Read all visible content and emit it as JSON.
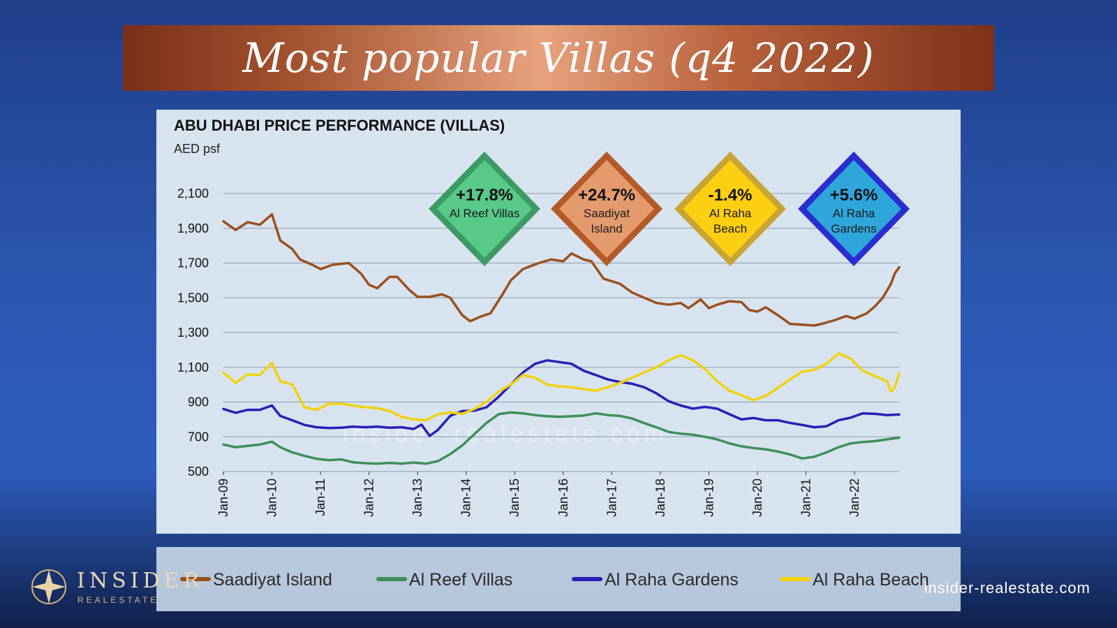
{
  "banner": {
    "title": "Most popular Villas (q4 2022)"
  },
  "brand": {
    "name": "INSIDER",
    "sub": "REALESTATE",
    "url": "insider-realestate.com"
  },
  "watermark": "insider-realestate.com",
  "colors": {
    "saadiyat": "#9b4f1c",
    "reef": "#3d8f58",
    "gardens": "#2a1fb8",
    "beach": "#f3d10d"
  },
  "badges": [
    {
      "value": "+17.8%",
      "lines": [
        "Al Reef Villas"
      ],
      "fill": "#59c98a",
      "border": "#3d9a63"
    },
    {
      "value": "+24.7%",
      "lines": [
        "Saadiyat",
        "Island"
      ],
      "fill": "#e59a6e",
      "border": "#b35a28"
    },
    {
      "value": "-1.4%",
      "lines": [
        "Al Raha",
        "Beach"
      ],
      "fill": "#fccf12",
      "border": "#c8a434"
    },
    {
      "value": "+5.6%",
      "lines": [
        "Al Raha",
        "Gardens"
      ],
      "fill": "#2ea6db",
      "border": "#2a2dcf"
    }
  ],
  "chart_data": {
    "type": "line",
    "title": "ABU DHABI PRICE PERFORMANCE (VILLAS)",
    "ylabel": "AED psf",
    "ylim": [
      500,
      2100
    ],
    "yticks": [
      "2,100",
      "1,900",
      "1,700",
      "1,500",
      "1,300",
      "1,100",
      "900",
      "700",
      "500"
    ],
    "x_tick_labels": [
      "Jan-09",
      "Jan-10",
      "Jan-11",
      "Jan-12",
      "Jan-13",
      "Jan-14",
      "Jan-15",
      "Jan-16",
      "Jan-17",
      "Jan-18",
      "Jan-19",
      "Jan-20",
      "Jan-21",
      "Jan-22"
    ],
    "x_range": [
      2009.0,
      2022.92
    ],
    "grid": "horizontal",
    "legend_position": "bottom",
    "series": [
      {
        "name": "Saadiyat Island",
        "color": "#9b4f1c",
        "points": [
          [
            2009.0,
            1940
          ],
          [
            2009.25,
            1890
          ],
          [
            2009.5,
            1935
          ],
          [
            2009.75,
            1920
          ],
          [
            2010.0,
            1980
          ],
          [
            2010.17,
            1830
          ],
          [
            2010.42,
            1780
          ],
          [
            2010.58,
            1720
          ],
          [
            2010.83,
            1690
          ],
          [
            2011.0,
            1665
          ],
          [
            2011.25,
            1690
          ],
          [
            2011.58,
            1700
          ],
          [
            2011.83,
            1640
          ],
          [
            2012.0,
            1575
          ],
          [
            2012.17,
            1555
          ],
          [
            2012.42,
            1620
          ],
          [
            2012.58,
            1620
          ],
          [
            2012.83,
            1545
          ],
          [
            2013.0,
            1505
          ],
          [
            2013.25,
            1505
          ],
          [
            2013.5,
            1520
          ],
          [
            2013.67,
            1500
          ],
          [
            2013.92,
            1400
          ],
          [
            2014.08,
            1365
          ],
          [
            2014.33,
            1395
          ],
          [
            2014.5,
            1410
          ],
          [
            2014.75,
            1520
          ],
          [
            2014.92,
            1600
          ],
          [
            2015.17,
            1665
          ],
          [
            2015.5,
            1700
          ],
          [
            2015.75,
            1720
          ],
          [
            2016.0,
            1710
          ],
          [
            2016.17,
            1755
          ],
          [
            2016.42,
            1720
          ],
          [
            2016.58,
            1710
          ],
          [
            2016.83,
            1610
          ],
          [
            2017.17,
            1580
          ],
          [
            2017.42,
            1530
          ],
          [
            2017.67,
            1500
          ],
          [
            2017.92,
            1470
          ],
          [
            2018.17,
            1460
          ],
          [
            2018.42,
            1470
          ],
          [
            2018.58,
            1440
          ],
          [
            2018.83,
            1490
          ],
          [
            2019.0,
            1440
          ],
          [
            2019.17,
            1460
          ],
          [
            2019.42,
            1480
          ],
          [
            2019.67,
            1475
          ],
          [
            2019.83,
            1430
          ],
          [
            2020.0,
            1420
          ],
          [
            2020.17,
            1445
          ],
          [
            2020.42,
            1400
          ],
          [
            2020.67,
            1350
          ],
          [
            2020.92,
            1345
          ],
          [
            2021.17,
            1340
          ],
          [
            2021.33,
            1350
          ],
          [
            2021.58,
            1370
          ],
          [
            2021.83,
            1395
          ],
          [
            2022.0,
            1380
          ],
          [
            2022.25,
            1410
          ],
          [
            2022.42,
            1450
          ],
          [
            2022.58,
            1500
          ],
          [
            2022.75,
            1580
          ],
          [
            2022.83,
            1640
          ],
          [
            2022.92,
            1675
          ]
        ]
      },
      {
        "name": "Al Reef Villas",
        "color": "#3d8f58",
        "points": [
          [
            2009.0,
            655
          ],
          [
            2009.25,
            640
          ],
          [
            2009.5,
            648
          ],
          [
            2009.75,
            655
          ],
          [
            2010.0,
            672
          ],
          [
            2010.17,
            640
          ],
          [
            2010.42,
            610
          ],
          [
            2010.67,
            590
          ],
          [
            2010.92,
            573
          ],
          [
            2011.17,
            565
          ],
          [
            2011.42,
            570
          ],
          [
            2011.67,
            553
          ],
          [
            2011.92,
            548
          ],
          [
            2012.17,
            545
          ],
          [
            2012.42,
            550
          ],
          [
            2012.67,
            545
          ],
          [
            2012.92,
            552
          ],
          [
            2013.17,
            545
          ],
          [
            2013.42,
            560
          ],
          [
            2013.67,
            600
          ],
          [
            2013.92,
            650
          ],
          [
            2014.17,
            715
          ],
          [
            2014.42,
            780
          ],
          [
            2014.67,
            830
          ],
          [
            2014.92,
            840
          ],
          [
            2015.17,
            835
          ],
          [
            2015.42,
            825
          ],
          [
            2015.67,
            818
          ],
          [
            2015.92,
            815
          ],
          [
            2016.17,
            818
          ],
          [
            2016.42,
            822
          ],
          [
            2016.67,
            835
          ],
          [
            2016.92,
            825
          ],
          [
            2017.17,
            820
          ],
          [
            2017.42,
            805
          ],
          [
            2017.67,
            778
          ],
          [
            2017.92,
            755
          ],
          [
            2018.17,
            728
          ],
          [
            2018.42,
            718
          ],
          [
            2018.67,
            712
          ],
          [
            2018.92,
            700
          ],
          [
            2019.17,
            685
          ],
          [
            2019.42,
            662
          ],
          [
            2019.67,
            645
          ],
          [
            2019.92,
            635
          ],
          [
            2020.17,
            628
          ],
          [
            2020.42,
            615
          ],
          [
            2020.67,
            598
          ],
          [
            2020.92,
            575
          ],
          [
            2021.17,
            585
          ],
          [
            2021.42,
            610
          ],
          [
            2021.67,
            640
          ],
          [
            2021.92,
            662
          ],
          [
            2022.17,
            670
          ],
          [
            2022.42,
            675
          ],
          [
            2022.67,
            685
          ],
          [
            2022.92,
            695
          ]
        ]
      },
      {
        "name": "Al Raha Gardens",
        "color": "#2a1fb8",
        "points": [
          [
            2009.0,
            860
          ],
          [
            2009.25,
            838
          ],
          [
            2009.5,
            855
          ],
          [
            2009.75,
            855
          ],
          [
            2010.0,
            880
          ],
          [
            2010.17,
            820
          ],
          [
            2010.42,
            795
          ],
          [
            2010.67,
            768
          ],
          [
            2010.92,
            755
          ],
          [
            2011.17,
            750
          ],
          [
            2011.42,
            752
          ],
          [
            2011.67,
            758
          ],
          [
            2011.92,
            755
          ],
          [
            2012.17,
            758
          ],
          [
            2012.42,
            752
          ],
          [
            2012.67,
            755
          ],
          [
            2012.92,
            745
          ],
          [
            2013.08,
            770
          ],
          [
            2013.25,
            705
          ],
          [
            2013.42,
            740
          ],
          [
            2013.67,
            820
          ],
          [
            2013.92,
            848
          ],
          [
            2014.17,
            850
          ],
          [
            2014.42,
            870
          ],
          [
            2014.67,
            930
          ],
          [
            2014.92,
            1000
          ],
          [
            2015.17,
            1070
          ],
          [
            2015.42,
            1120
          ],
          [
            2015.67,
            1140
          ],
          [
            2015.92,
            1130
          ],
          [
            2016.17,
            1120
          ],
          [
            2016.42,
            1080
          ],
          [
            2016.67,
            1055
          ],
          [
            2016.92,
            1030
          ],
          [
            2017.17,
            1015
          ],
          [
            2017.42,
            1005
          ],
          [
            2017.67,
            985
          ],
          [
            2017.92,
            950
          ],
          [
            2018.17,
            905
          ],
          [
            2018.42,
            880
          ],
          [
            2018.67,
            862
          ],
          [
            2018.92,
            872
          ],
          [
            2019.17,
            862
          ],
          [
            2019.42,
            830
          ],
          [
            2019.67,
            800
          ],
          [
            2019.92,
            808
          ],
          [
            2020.17,
            795
          ],
          [
            2020.42,
            795
          ],
          [
            2020.67,
            780
          ],
          [
            2020.92,
            768
          ],
          [
            2021.17,
            755
          ],
          [
            2021.42,
            760
          ],
          [
            2021.67,
            795
          ],
          [
            2021.92,
            810
          ],
          [
            2022.17,
            835
          ],
          [
            2022.42,
            832
          ],
          [
            2022.67,
            825
          ],
          [
            2022.92,
            828
          ]
        ]
      },
      {
        "name": "Al Raha Beach",
        "color": "#f3d10d",
        "points": [
          [
            2009.0,
            1070
          ],
          [
            2009.25,
            1010
          ],
          [
            2009.5,
            1060
          ],
          [
            2009.75,
            1055
          ],
          [
            2010.0,
            1125
          ],
          [
            2010.17,
            1020
          ],
          [
            2010.42,
            1000
          ],
          [
            2010.67,
            870
          ],
          [
            2010.92,
            855
          ],
          [
            2011.17,
            890
          ],
          [
            2011.42,
            890
          ],
          [
            2011.67,
            880
          ],
          [
            2011.92,
            870
          ],
          [
            2012.17,
            865
          ],
          [
            2012.42,
            848
          ],
          [
            2012.67,
            815
          ],
          [
            2012.92,
            800
          ],
          [
            2013.17,
            795
          ],
          [
            2013.42,
            830
          ],
          [
            2013.67,
            840
          ],
          [
            2013.92,
            832
          ],
          [
            2014.17,
            860
          ],
          [
            2014.42,
            900
          ],
          [
            2014.67,
            960
          ],
          [
            2014.92,
            1000
          ],
          [
            2015.17,
            1055
          ],
          [
            2015.42,
            1040
          ],
          [
            2015.67,
            1000
          ],
          [
            2015.92,
            990
          ],
          [
            2016.17,
            985
          ],
          [
            2016.42,
            975
          ],
          [
            2016.67,
            965
          ],
          [
            2016.92,
            985
          ],
          [
            2017.17,
            1010
          ],
          [
            2017.42,
            1040
          ],
          [
            2017.67,
            1070
          ],
          [
            2017.92,
            1100
          ],
          [
            2018.17,
            1140
          ],
          [
            2018.42,
            1170
          ],
          [
            2018.67,
            1140
          ],
          [
            2018.92,
            1090
          ],
          [
            2019.17,
            1020
          ],
          [
            2019.42,
            965
          ],
          [
            2019.67,
            940
          ],
          [
            2019.92,
            910
          ],
          [
            2020.17,
            935
          ],
          [
            2020.42,
            980
          ],
          [
            2020.67,
            1030
          ],
          [
            2020.92,
            1075
          ],
          [
            2021.17,
            1085
          ],
          [
            2021.42,
            1120
          ],
          [
            2021.67,
            1180
          ],
          [
            2021.92,
            1150
          ],
          [
            2022.17,
            1080
          ],
          [
            2022.42,
            1050
          ],
          [
            2022.67,
            1020
          ],
          [
            2022.75,
            960
          ],
          [
            2022.83,
            985
          ],
          [
            2022.92,
            1065
          ]
        ]
      }
    ]
  }
}
